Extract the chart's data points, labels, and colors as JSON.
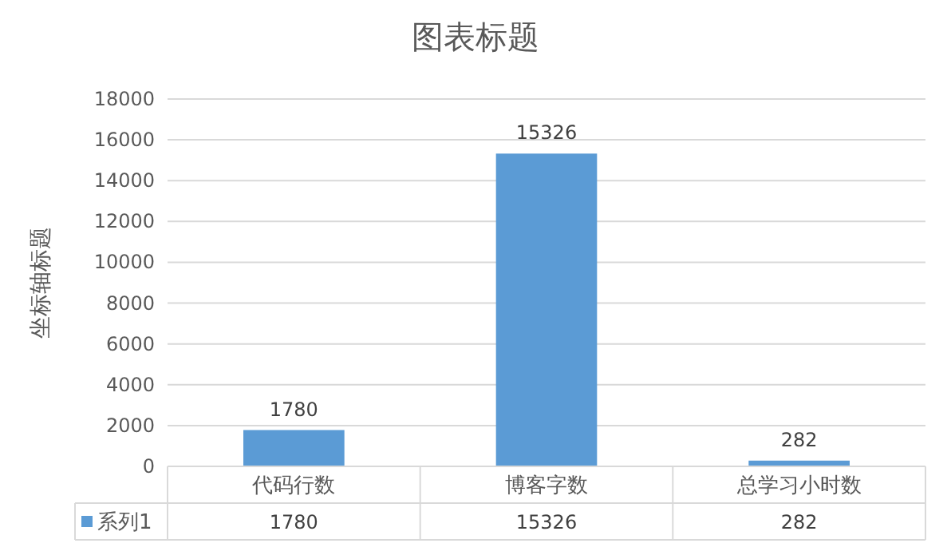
{
  "chart_data": {
    "type": "bar",
    "title": "图表标题",
    "ylabel": "坐标轴标题",
    "categories": [
      "代码行数",
      "博客字数",
      "总学习小时数"
    ],
    "series": [
      {
        "name": "系列1",
        "color": "#5b9bd5",
        "values": [
          1780,
          15326,
          282
        ],
        "value_labels": [
          "1780",
          "15326",
          "282"
        ]
      }
    ],
    "ylim": [
      0,
      18000
    ],
    "yticks": [
      0,
      2000,
      4000,
      6000,
      8000,
      10000,
      12000,
      14000,
      16000,
      18000
    ],
    "annotations": [
      "1780",
      "15326",
      "282"
    ],
    "grid": "y",
    "data_labels": true,
    "legend": "bottom"
  }
}
